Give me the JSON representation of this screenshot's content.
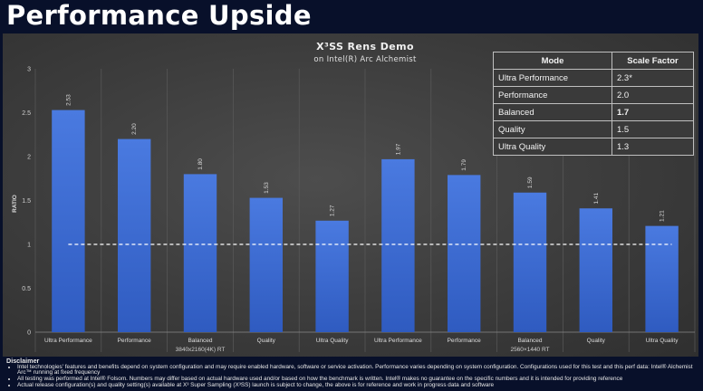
{
  "header": {
    "title": "Performance Upside"
  },
  "chart_data": {
    "type": "bar",
    "title": "X³SS Rens Demo",
    "subtitle": "on Intel(R) Arc Alchemist",
    "ylabel": "RATIO",
    "ylim": [
      0,
      3
    ],
    "yticks": [
      "0",
      "0.5",
      "1",
      "1.5",
      "2",
      "2.5",
      "3"
    ],
    "reference_line": 1,
    "bar_color": "#3f6fd6",
    "groups": [
      {
        "name": "3840x2160(4K) RT",
        "categories": [
          "Ultra Performance",
          "Performance",
          "Balanced",
          "Quality",
          "Ultra Quality"
        ],
        "values": [
          2.53,
          2.2,
          1.8,
          1.53,
          1.27
        ],
        "labels": [
          "2.53",
          "2.20",
          "1.80",
          "1.53",
          "1.27"
        ]
      },
      {
        "name": "2560×1440 RT",
        "categories": [
          "Ultra Performance",
          "Performance",
          "Balanced",
          "Quality",
          "Ultra Quality"
        ],
        "values": [
          1.97,
          1.79,
          1.59,
          1.41,
          1.21
        ],
        "labels": [
          "1.97",
          "1.79",
          "1.59",
          "1.41",
          "1.21"
        ]
      }
    ]
  },
  "scale_table": {
    "headers": [
      "Mode",
      "Scale Factor"
    ],
    "rows": [
      {
        "mode": "Ultra Performance",
        "factor": "2.3*"
      },
      {
        "mode": "Performance",
        "factor": "2.0"
      },
      {
        "mode": "Balanced",
        "factor": "1.7"
      },
      {
        "mode": "Quality",
        "factor": "1.5"
      },
      {
        "mode": "Ultra Quality",
        "factor": "1.3"
      }
    ]
  },
  "disclaimer": {
    "title": "Disclaimer",
    "items": [
      "Intel technologies' features and benefits depend on system configuration and may require enabled hardware, software or service activation. Performance varies depending on system configuration. Configurations used for this test and this perf data: Intel® Alchemist Arc™ running at fixed frequency",
      "All testing was performed at Intel® Folsom. Numbers may differ based on actual hardware used and/or based on how the benchmark is written. Intel® makes no guarantee on the specific numbers and it is intended for providing reference",
      "Actual release configuration(s) and quality setting(s) available at X³ Super Sampling (X³SS) launch is subject to change, the above is for reference and work in progress data and software"
    ]
  }
}
